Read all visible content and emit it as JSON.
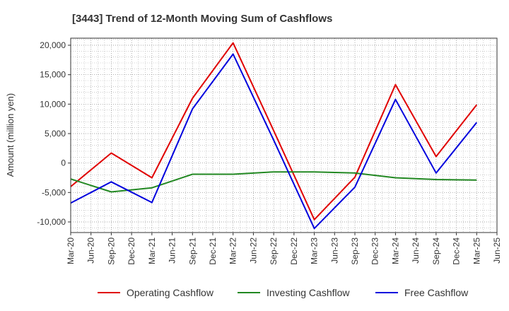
{
  "chart_data": {
    "type": "line",
    "title": "[3443]  Trend of 12-Month Moving Sum of Cashflows",
    "ylabel": "Amount (million yen)",
    "xlabel": "",
    "x_ticks": [
      "Mar-20",
      "Jun-20",
      "Sep-20",
      "Dec-20",
      "Mar-21",
      "Jun-21",
      "Sep-21",
      "Dec-21",
      "Mar-22",
      "Jun-22",
      "Sep-22",
      "Dec-22",
      "Mar-23",
      "Jun-23",
      "Sep-23",
      "Dec-23",
      "Mar-24",
      "Jun-24",
      "Sep-24",
      "Dec-24",
      "Mar-25",
      "Jun-25"
    ],
    "y_ticks": [
      -10000,
      -5000,
      0,
      5000,
      10000,
      15000,
      20000
    ],
    "y_tick_labels": [
      "-10,000",
      "-5,000",
      "0",
      "5,000",
      "10,000",
      "15,000",
      "20,000"
    ],
    "ylim": [
      -11800,
      21200
    ],
    "grid": true,
    "legend_position": "bottom",
    "x": [
      "Mar-20",
      "Sep-20",
      "Mar-21",
      "Sep-21",
      "Mar-22",
      "Sep-22",
      "Mar-23",
      "Sep-23",
      "Mar-24",
      "Sep-24",
      "Mar-25"
    ],
    "series": [
      {
        "name": "Operating Cashflow",
        "color": "#e00000",
        "values": [
          -4000,
          1700,
          -2500,
          11000,
          20400,
          5500,
          -9600,
          -2400,
          13300,
          1100,
          9900
        ]
      },
      {
        "name": "Investing Cashflow",
        "color": "#228822",
        "values": [
          -2700,
          -4900,
          -4200,
          -1900,
          -1900,
          -1500,
          -1500,
          -1700,
          -2500,
          -2800,
          -2900
        ]
      },
      {
        "name": "Free Cashflow",
        "color": "#0000dd",
        "values": [
          -6800,
          -3200,
          -6700,
          9200,
          18500,
          3900,
          -11100,
          -4100,
          10800,
          -1700,
          6900
        ]
      }
    ]
  }
}
